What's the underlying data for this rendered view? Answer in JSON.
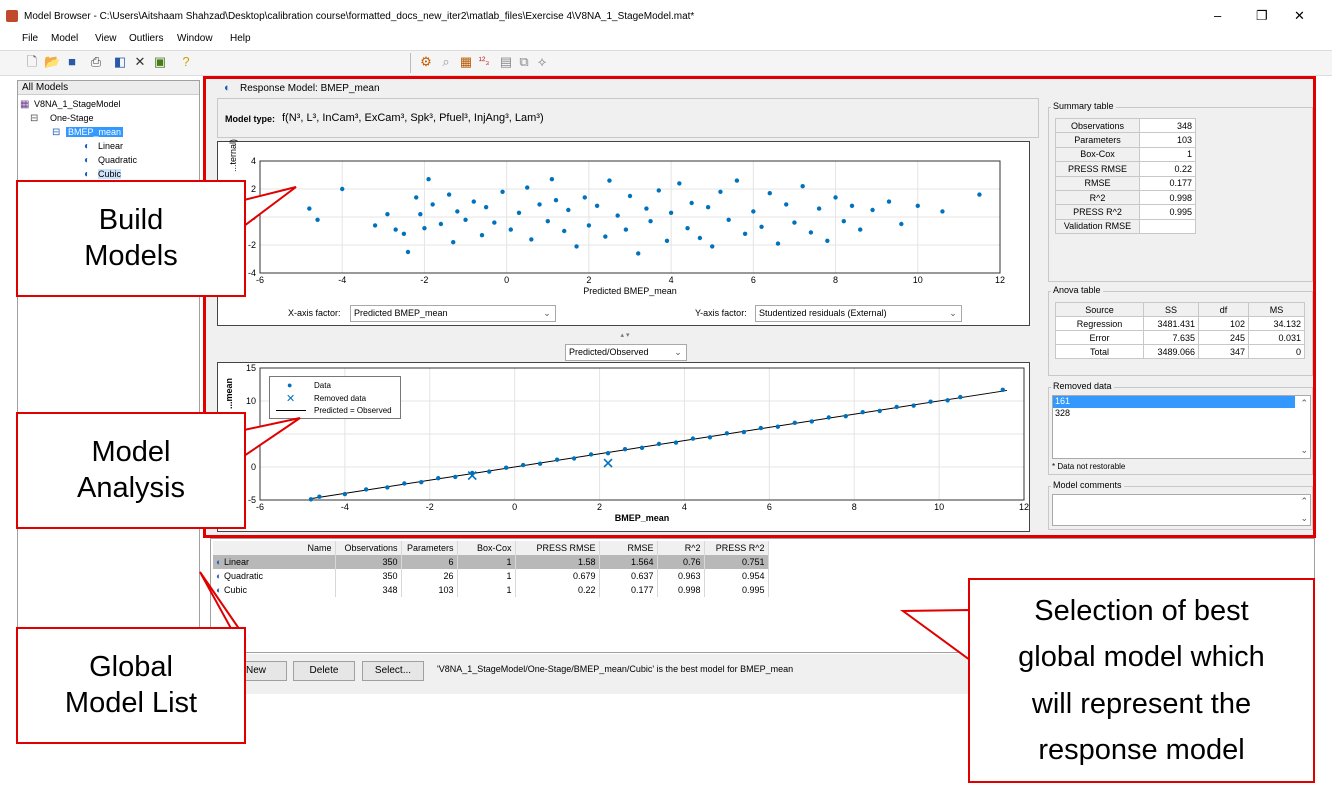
{
  "window": {
    "title": "Model Browser - C:\\Users\\Aitshaam Shahzad\\Desktop\\calibration course\\formatted_docs_new_iter2\\matlab_files\\Exercise 4\\V8NA_1_StageModel.mat*",
    "minimize": "–",
    "restore": "❐",
    "close": "✕"
  },
  "menu": [
    "File",
    "Model",
    "View",
    "Outliers",
    "Window",
    "Help"
  ],
  "tree": {
    "header": "All Models",
    "root": "V8NA_1_StageModel",
    "stage": "One-Stage",
    "response": "BMEP_mean",
    "children": [
      "Linear",
      "Quadratic",
      "Cubic"
    ]
  },
  "response_model": {
    "title": "Response Model: BMEP_mean",
    "model_type_label": "Model type:",
    "model_type_value": "f(N³, L³, InCam³, ExCam³, Spk³, Pfuel³, InjAng³, Lam³)"
  },
  "residual_plot": {
    "xlabel": "Predicted BMEP_mean",
    "ylabel": "...ternal)",
    "x_factor_label": "X-axis factor:",
    "x_factor_value": "Predicted BMEP_mean",
    "y_factor_label": "Y-axis factor:",
    "y_factor_value": "Studentized residuals (External)"
  },
  "pred_plot": {
    "select_value": "Predicted/Observed",
    "xlabel": "BMEP_mean",
    "ylabel": "...mean",
    "legend": [
      "Data",
      "Removed data",
      "Predicted = Observed"
    ]
  },
  "chart_data": [
    {
      "type": "scatter",
      "title": "",
      "xlabel": "Predicted BMEP_mean",
      "ylabel": "Studentized residuals (External)",
      "xlim": [
        -6,
        12
      ],
      "ylim": [
        -4,
        4
      ],
      "x_ticks": [
        -6,
        -4,
        -2,
        0,
        2,
        4,
        6,
        8,
        10,
        12
      ],
      "y_ticks": [
        -4,
        -2,
        0,
        2,
        4
      ],
      "grid": true,
      "points": [
        [
          -4.8,
          0.6
        ],
        [
          -4.6,
          -0.2
        ],
        [
          -4.0,
          2.0
        ],
        [
          -3.2,
          -0.6
        ],
        [
          -2.9,
          0.2
        ],
        [
          -2.7,
          -0.9
        ],
        [
          -2.5,
          -1.2
        ],
        [
          -2.4,
          -2.5
        ],
        [
          -2.2,
          1.4
        ],
        [
          -2.1,
          0.2
        ],
        [
          -2.0,
          -0.8
        ],
        [
          -1.9,
          2.7
        ],
        [
          -1.8,
          0.9
        ],
        [
          -1.6,
          -0.5
        ],
        [
          -1.4,
          1.6
        ],
        [
          -1.3,
          -1.8
        ],
        [
          -1.2,
          0.4
        ],
        [
          -1.0,
          -0.2
        ],
        [
          -0.8,
          1.1
        ],
        [
          -0.6,
          -1.3
        ],
        [
          -0.5,
          0.7
        ],
        [
          -0.3,
          -0.4
        ],
        [
          -0.1,
          1.8
        ],
        [
          0.1,
          -0.9
        ],
        [
          0.3,
          0.3
        ],
        [
          0.5,
          2.1
        ],
        [
          0.6,
          -1.6
        ],
        [
          0.8,
          0.9
        ],
        [
          1.0,
          -0.3
        ],
        [
          1.1,
          2.7
        ],
        [
          1.2,
          1.2
        ],
        [
          1.4,
          -1.0
        ],
        [
          1.5,
          0.5
        ],
        [
          1.7,
          -2.1
        ],
        [
          1.9,
          1.4
        ],
        [
          2.0,
          -0.6
        ],
        [
          2.2,
          0.8
        ],
        [
          2.4,
          -1.4
        ],
        [
          2.5,
          2.6
        ],
        [
          2.7,
          0.1
        ],
        [
          2.9,
          -0.9
        ],
        [
          3.0,
          1.5
        ],
        [
          3.2,
          -2.6
        ],
        [
          3.4,
          0.6
        ],
        [
          3.5,
          -0.3
        ],
        [
          3.7,
          1.9
        ],
        [
          3.9,
          -1.7
        ],
        [
          4.0,
          0.3
        ],
        [
          4.2,
          2.4
        ],
        [
          4.4,
          -0.8
        ],
        [
          4.5,
          1.0
        ],
        [
          4.7,
          -1.5
        ],
        [
          4.9,
          0.7
        ],
        [
          5.0,
          -2.1
        ],
        [
          5.2,
          1.8
        ],
        [
          5.4,
          -0.2
        ],
        [
          5.6,
          2.6
        ],
        [
          5.8,
          -1.2
        ],
        [
          6.0,
          0.4
        ],
        [
          6.2,
          -0.7
        ],
        [
          6.4,
          1.7
        ],
        [
          6.6,
          -1.9
        ],
        [
          6.8,
          0.9
        ],
        [
          7.0,
          -0.4
        ],
        [
          7.2,
          2.2
        ],
        [
          7.4,
          -1.1
        ],
        [
          7.6,
          0.6
        ],
        [
          7.8,
          -1.7
        ],
        [
          8.0,
          1.4
        ],
        [
          8.2,
          -0.3
        ],
        [
          8.4,
          0.8
        ],
        [
          8.6,
          -0.9
        ],
        [
          8.9,
          0.5
        ],
        [
          9.3,
          1.1
        ],
        [
          9.6,
          -0.5
        ],
        [
          10.0,
          0.8
        ],
        [
          10.6,
          0.4
        ],
        [
          11.5,
          1.6
        ]
      ]
    },
    {
      "type": "scatter",
      "title": "",
      "xlabel": "BMEP_mean",
      "ylabel": "Observed BMEP_mean",
      "xlim": [
        -6,
        12
      ],
      "ylim": [
        -5,
        15
      ],
      "x_ticks": [
        -6,
        -4,
        -2,
        0,
        2,
        4,
        6,
        8,
        10,
        12
      ],
      "y_ticks": [
        -5,
        0,
        5,
        10,
        15
      ],
      "grid": true,
      "series": [
        {
          "name": "Data",
          "points": [
            [
              -4.8,
              -4.9
            ],
            [
              -4.6,
              -4.5
            ],
            [
              -4.0,
              -4.1
            ],
            [
              -3.5,
              -3.4
            ],
            [
              -3.0,
              -3.1
            ],
            [
              -2.6,
              -2.5
            ],
            [
              -2.2,
              -2.3
            ],
            [
              -1.8,
              -1.7
            ],
            [
              -1.4,
              -1.5
            ],
            [
              -1.0,
              -0.9
            ],
            [
              -0.6,
              -0.7
            ],
            [
              -0.2,
              -0.1
            ],
            [
              0.2,
              0.3
            ],
            [
              0.6,
              0.5
            ],
            [
              1.0,
              1.1
            ],
            [
              1.4,
              1.3
            ],
            [
              1.8,
              1.9
            ],
            [
              2.2,
              2.1
            ],
            [
              2.6,
              2.7
            ],
            [
              3.0,
              2.9
            ],
            [
              3.4,
              3.5
            ],
            [
              3.8,
              3.7
            ],
            [
              4.2,
              4.3
            ],
            [
              4.6,
              4.5
            ],
            [
              5.0,
              5.1
            ],
            [
              5.4,
              5.3
            ],
            [
              5.8,
              5.9
            ],
            [
              6.2,
              6.1
            ],
            [
              6.6,
              6.7
            ],
            [
              7.0,
              6.9
            ],
            [
              7.4,
              7.5
            ],
            [
              7.8,
              7.7
            ],
            [
              8.2,
              8.3
            ],
            [
              8.6,
              8.5
            ],
            [
              9.0,
              9.1
            ],
            [
              9.4,
              9.3
            ],
            [
              9.8,
              9.9
            ],
            [
              10.2,
              10.1
            ],
            [
              10.5,
              10.6
            ],
            [
              11.5,
              11.7
            ]
          ]
        },
        {
          "name": "Removed data",
          "points": [
            [
              -1.0,
              -1.3
            ],
            [
              2.2,
              0.6
            ]
          ]
        },
        {
          "name": "Predicted = Observed",
          "points": [
            [
              -4.8,
              -4.8
            ],
            [
              11.6,
              11.6
            ]
          ]
        }
      ]
    }
  ],
  "summary_table": {
    "title": "Summary table",
    "rows": [
      [
        "Observations",
        "348"
      ],
      [
        "Parameters",
        "103"
      ],
      [
        "Box-Cox",
        "1"
      ],
      [
        "PRESS RMSE",
        "0.22"
      ],
      [
        "RMSE",
        "0.177"
      ],
      [
        "R^2",
        "0.998"
      ],
      [
        "PRESS R^2",
        "0.995"
      ],
      [
        "Validation RMSE",
        ""
      ]
    ]
  },
  "anova_table": {
    "title": "Anova table",
    "headers": [
      "Source",
      "SS",
      "df",
      "MS"
    ],
    "rows": [
      [
        "Regression",
        "3481.431",
        "102",
        "34.132"
      ],
      [
        "Error",
        "7.635",
        "245",
        "0.031"
      ],
      [
        "Total",
        "3489.066",
        "347",
        "0"
      ]
    ]
  },
  "removed_data": {
    "title": "Removed data",
    "items": [
      "161",
      "328"
    ],
    "note": "* Data not restorable"
  },
  "model_comments": {
    "title": "Model comments"
  },
  "model_list": {
    "headers": [
      "Name",
      "Observations",
      "Parameters",
      "Box-Cox",
      "PRESS RMSE",
      "RMSE",
      "R^2",
      "PRESS R^2"
    ],
    "rows": [
      [
        "Linear",
        "350",
        "6",
        "1",
        "1.58",
        "1.564",
        "0.76",
        "0.751"
      ],
      [
        "Quadratic",
        "350",
        "26",
        "1",
        "0.679",
        "0.637",
        "0.963",
        "0.954"
      ],
      [
        "Cubic",
        "348",
        "103",
        "1",
        "0.22",
        "0.177",
        "0.998",
        "0.995"
      ]
    ]
  },
  "buttons": {
    "new": "New",
    "delete": "Delete",
    "select": "Select...",
    "status": "'V8NA_1_StageModel/One-Stage/BMEP_mean/Cubic' is the best model for BMEP_mean"
  },
  "callouts": {
    "build_1": "Build",
    "build_2": "Models",
    "analysis_1": "Model",
    "analysis_2": "Analysis",
    "global_1": "Global",
    "global_2": "Model List",
    "selection_1": "Selection of best",
    "selection_2": "global model which",
    "selection_3": "will represent the",
    "selection_4": "response model"
  },
  "colors": {
    "accent_red": "#e00000",
    "data_blue": "#0072bd",
    "selection_blue": "#3399ff",
    "panel_gray": "#f0f0f0"
  }
}
